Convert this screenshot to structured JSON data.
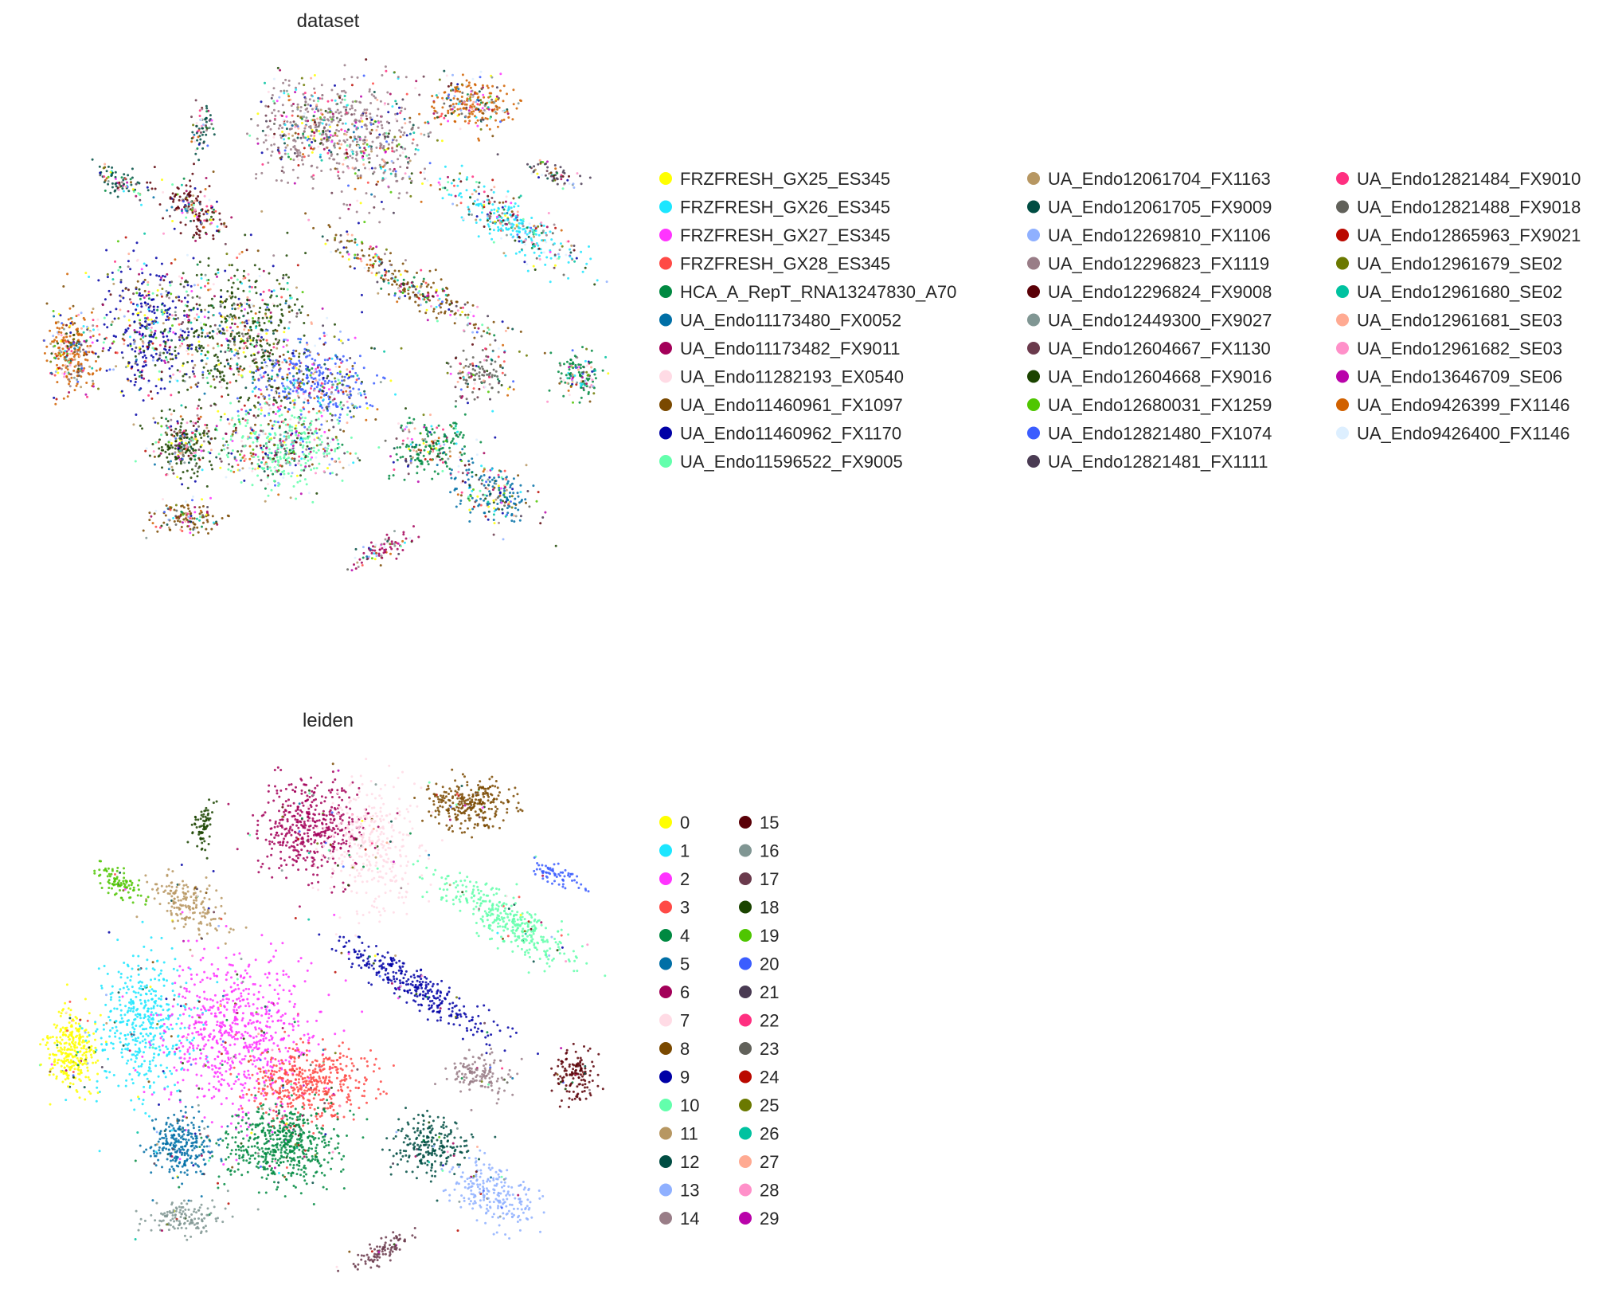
{
  "chart_data": [
    {
      "type": "scatter",
      "title": "dataset",
      "xlabel": "",
      "ylabel": "",
      "grid": false,
      "legend_placement": "right",
      "series": [
        {
          "name": "FRZFRESH_GX25_ES345",
          "color": "#ffff00"
        },
        {
          "name": "FRZFRESH_GX26_ES345",
          "color": "#1ce6ff"
        },
        {
          "name": "FRZFRESH_GX27_ES345",
          "color": "#ff34ff"
        },
        {
          "name": "FRZFRESH_GX28_ES345",
          "color": "#ff4a46"
        },
        {
          "name": "HCA_A_RepT_RNA13247830_A70",
          "color": "#008941"
        },
        {
          "name": "UA_Endo11173480_FX0052",
          "color": "#006fa6"
        },
        {
          "name": "UA_Endo11173482_FX9011",
          "color": "#a30059"
        },
        {
          "name": "UA_Endo11282193_EX0540",
          "color": "#ffdbe5"
        },
        {
          "name": "UA_Endo11460961_FX1097",
          "color": "#7a4900"
        },
        {
          "name": "UA_Endo11460962_FX1170",
          "color": "#0000a6"
        },
        {
          "name": "UA_Endo11596522_FX9005",
          "color": "#63ffac"
        },
        {
          "name": "UA_Endo12061704_FX1163",
          "color": "#b79762"
        },
        {
          "name": "UA_Endo12061705_FX9009",
          "color": "#004d43"
        },
        {
          "name": "UA_Endo12269810_FX1106",
          "color": "#8fb0ff"
        },
        {
          "name": "UA_Endo12296823_FX1119",
          "color": "#997d87"
        },
        {
          "name": "UA_Endo12296824_FX9008",
          "color": "#5a0007"
        },
        {
          "name": "UA_Endo12449300_FX9027",
          "color": "#809693"
        },
        {
          "name": "UA_Endo12604667_FX1130",
          "color": "#6a3a4c"
        },
        {
          "name": "UA_Endo12604668_FX9016",
          "color": "#1b4400"
        },
        {
          "name": "UA_Endo12680031_FX1259",
          "color": "#4fc601"
        },
        {
          "name": "UA_Endo12821480_FX1074",
          "color": "#3b5dff"
        },
        {
          "name": "UA_Endo12821481_FX1111",
          "color": "#4a3b53"
        },
        {
          "name": "UA_Endo12821484_FX9010",
          "color": "#ff2f80"
        },
        {
          "name": "UA_Endo12821488_FX9018",
          "color": "#61615a"
        },
        {
          "name": "UA_Endo12865963_FX9021",
          "color": "#ba0900"
        },
        {
          "name": "UA_Endo12961679_SE02",
          "color": "#6b7900"
        },
        {
          "name": "UA_Endo12961680_SE02",
          "color": "#00c2a0"
        },
        {
          "name": "UA_Endo12961681_SE03",
          "color": "#ffaa92"
        },
        {
          "name": "UA_Endo12961682_SE03",
          "color": "#ff90c9"
        },
        {
          "name": "UA_Endo13646709_SE06",
          "color": "#b903aa"
        },
        {
          "name": "UA_Endo9426399_FX1146",
          "color": "#d16100"
        },
        {
          "name": "UA_Endo9426400_FX1146",
          "color": "#ddefff"
        }
      ]
    },
    {
      "type": "scatter",
      "title": "leiden",
      "xlabel": "",
      "ylabel": "",
      "grid": false,
      "legend_placement": "right",
      "series": [
        {
          "name": "0",
          "color": "#ffff00"
        },
        {
          "name": "1",
          "color": "#1ce6ff"
        },
        {
          "name": "2",
          "color": "#ff34ff"
        },
        {
          "name": "3",
          "color": "#ff4a46"
        },
        {
          "name": "4",
          "color": "#008941"
        },
        {
          "name": "5",
          "color": "#006fa6"
        },
        {
          "name": "6",
          "color": "#a30059"
        },
        {
          "name": "7",
          "color": "#ffdbe5"
        },
        {
          "name": "8",
          "color": "#7a4900"
        },
        {
          "name": "9",
          "color": "#0000a6"
        },
        {
          "name": "10",
          "color": "#63ffac"
        },
        {
          "name": "11",
          "color": "#b79762"
        },
        {
          "name": "12",
          "color": "#004d43"
        },
        {
          "name": "13",
          "color": "#8fb0ff"
        },
        {
          "name": "14",
          "color": "#997d87"
        },
        {
          "name": "15",
          "color": "#5a0007"
        },
        {
          "name": "16",
          "color": "#809693"
        },
        {
          "name": "17",
          "color": "#6a3a4c"
        },
        {
          "name": "18",
          "color": "#1b4400"
        },
        {
          "name": "19",
          "color": "#4fc601"
        },
        {
          "name": "20",
          "color": "#3b5dff"
        },
        {
          "name": "21",
          "color": "#4a3b53"
        },
        {
          "name": "22",
          "color": "#ff2f80"
        },
        {
          "name": "23",
          "color": "#61615a"
        },
        {
          "name": "24",
          "color": "#ba0900"
        },
        {
          "name": "25",
          "color": "#6b7900"
        },
        {
          "name": "26",
          "color": "#00c2a0"
        },
        {
          "name": "27",
          "color": "#ffaa92"
        },
        {
          "name": "28",
          "color": "#ff90c9"
        },
        {
          "name": "29",
          "color": "#b903aa"
        }
      ]
    }
  ]
}
